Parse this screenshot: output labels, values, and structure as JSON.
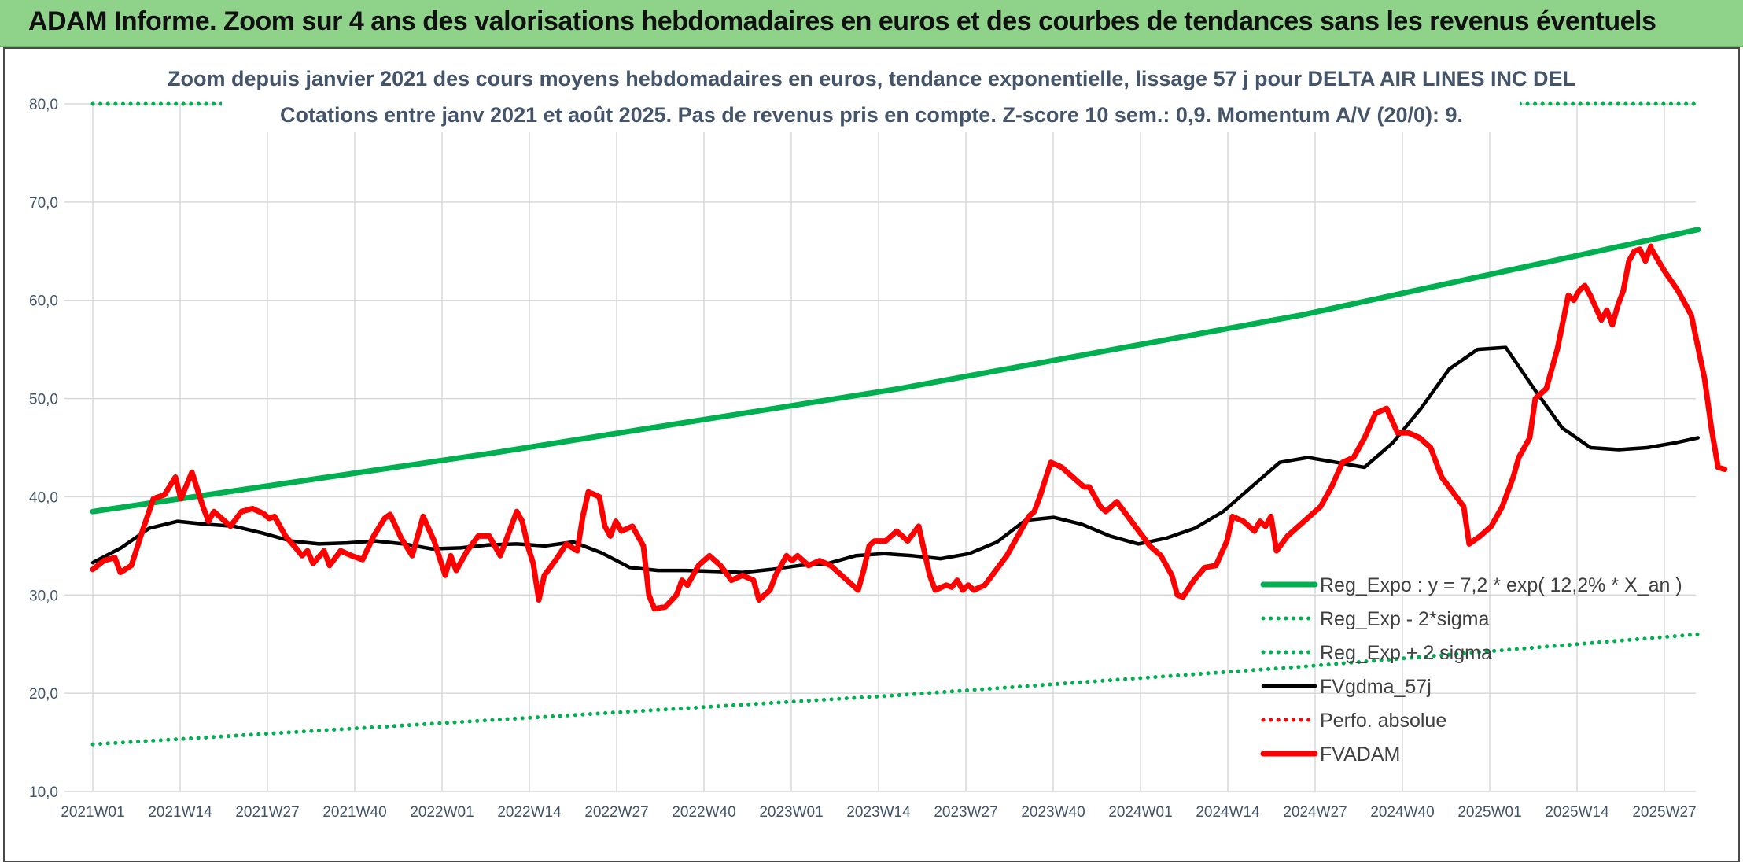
{
  "banner": {
    "text": "ADAM Informe. Zoom sur 4 ans des valorisations hebdomadaires en euros et des courbes de tendances sans les revenus éventuels"
  },
  "colors": {
    "banner_bg": "#8fd38a",
    "trend_green": "#00b050",
    "price_red": "#ff0000",
    "smooth_black": "#000000",
    "text_blue_gray": "#44546a"
  },
  "chart_data": {
    "type": "line",
    "title": "Zoom depuis janvier 2021 des cours moyens hebdomadaires en euros, tendance exponentielle, lissage 57 j pour DELTA AIR LINES INC DEL",
    "subtitle": "Cotations entre janv 2021 et août 2025. Pas de revenus pris en compte. Z-score 10 sem.: 0,9. Momentum A/V (20/0): 9.",
    "xlabel": "",
    "ylabel": "",
    "ylim": [
      10,
      80
    ],
    "yticks": [
      "10,0",
      "20,0",
      "30,0",
      "40,0",
      "50,0",
      "60,0",
      "70,0",
      "80,0"
    ],
    "xticks": [
      "2021W01",
      "2021W14",
      "2021W27",
      "2021W40",
      "2022W01",
      "2022W14",
      "2022W27",
      "2022W40",
      "2023W01",
      "2023W14",
      "2023W27",
      "2023W40",
      "2024W01",
      "2024W14",
      "2024W27",
      "2024W40",
      "2025W01",
      "2025W14",
      "2025W27"
    ],
    "xrange_weeks": [
      0,
      239
    ],
    "grid": true,
    "legend_position": "bottom-right",
    "series": [
      {
        "name": "Reg_Expo : y = 7,2 * exp( 12,2% *  X_an )",
        "style": "solid-thick",
        "color": "#00b050",
        "points": [
          [
            0,
            38.5
          ],
          [
            60,
            44.5
          ],
          [
            120,
            51.0
          ],
          [
            180,
            58.5
          ],
          [
            239,
            67.2
          ]
        ]
      },
      {
        "name": "Reg_Exp - 2*sigma",
        "style": "dotted",
        "color": "#00b050",
        "points": [
          [
            0,
            14.8
          ],
          [
            60,
            17.3
          ],
          [
            120,
            19.8
          ],
          [
            180,
            22.7
          ],
          [
            239,
            26.0
          ]
        ]
      },
      {
        "name": "Reg_Exp + 2 sigma",
        "style": "dotted",
        "color": "#00b050",
        "points": [
          [
            0,
            80.0
          ],
          [
            239,
            80.0
          ]
        ]
      },
      {
        "name": "FVgdma_57j",
        "style": "solid",
        "color": "#000000",
        "points": [
          [
            0,
            33.3
          ],
          [
            5,
            34.8
          ],
          [
            10,
            36.8
          ],
          [
            15,
            37.5
          ],
          [
            20,
            37.2
          ],
          [
            25,
            37.0
          ],
          [
            30,
            36.3
          ],
          [
            35,
            35.5
          ],
          [
            40,
            35.2
          ],
          [
            45,
            35.3
          ],
          [
            50,
            35.5
          ],
          [
            55,
            35.2
          ],
          [
            60,
            34.7
          ],
          [
            65,
            34.8
          ],
          [
            70,
            35.1
          ],
          [
            75,
            35.2
          ],
          [
            80,
            35.0
          ],
          [
            85,
            35.4
          ],
          [
            90,
            34.3
          ],
          [
            95,
            32.8
          ],
          [
            100,
            32.5
          ],
          [
            105,
            32.5
          ],
          [
            110,
            32.4
          ],
          [
            115,
            32.3
          ],
          [
            120,
            32.6
          ],
          [
            125,
            33.0
          ],
          [
            130,
            33.2
          ],
          [
            135,
            34.0
          ],
          [
            140,
            34.2
          ],
          [
            145,
            34.0
          ],
          [
            150,
            33.7
          ],
          [
            155,
            34.2
          ],
          [
            160,
            35.4
          ],
          [
            165,
            37.6
          ],
          [
            170,
            37.9
          ],
          [
            175,
            37.2
          ],
          [
            180,
            36.0
          ],
          [
            185,
            35.2
          ],
          [
            190,
            35.8
          ],
          [
            195,
            36.8
          ],
          [
            200,
            38.5
          ],
          [
            205,
            41.0
          ],
          [
            210,
            43.5
          ],
          [
            215,
            44.0
          ],
          [
            220,
            43.5
          ],
          [
            225,
            43.0
          ],
          [
            230,
            45.5
          ],
          [
            235,
            49.0
          ],
          [
            240,
            53.0
          ],
          [
            245,
            55.0
          ],
          [
            250,
            55.2
          ],
          [
            255,
            51.0
          ],
          [
            260,
            47.0
          ],
          [
            265,
            45.0
          ],
          [
            270,
            44.8
          ],
          [
            275,
            45.0
          ],
          [
            280,
            45.5
          ],
          [
            284,
            46.0
          ]
        ]
      },
      {
        "name": "Perfo. absolue",
        "style": "dotted",
        "color": "#ff0000",
        "points": []
      },
      {
        "name": "FVADAM",
        "style": "solid-thick",
        "color": "#ff0000",
        "points": [
          [
            0,
            32.6
          ],
          [
            2,
            33.5
          ],
          [
            4,
            33.8
          ],
          [
            5,
            32.3
          ],
          [
            7,
            33.0
          ],
          [
            9,
            36.5
          ],
          [
            11,
            39.8
          ],
          [
            13,
            40.2
          ],
          [
            15,
            42.0
          ],
          [
            16,
            39.8
          ],
          [
            18,
            42.5
          ],
          [
            20,
            39.0
          ],
          [
            21,
            37.5
          ],
          [
            22,
            38.5
          ],
          [
            23,
            38.0
          ],
          [
            25,
            37.0
          ],
          [
            27,
            38.5
          ],
          [
            29,
            38.8
          ],
          [
            31,
            38.3
          ],
          [
            32,
            37.8
          ],
          [
            33,
            38.0
          ],
          [
            35,
            36.0
          ],
          [
            37,
            34.7
          ],
          [
            38,
            34.0
          ],
          [
            39,
            34.5
          ],
          [
            40,
            33.2
          ],
          [
            42,
            34.5
          ],
          [
            43,
            33.0
          ],
          [
            45,
            34.5
          ],
          [
            47,
            34.0
          ],
          [
            49,
            33.6
          ],
          [
            51,
            36.0
          ],
          [
            53,
            37.8
          ],
          [
            54,
            38.2
          ],
          [
            56,
            35.8
          ],
          [
            58,
            34.0
          ],
          [
            60,
            38.0
          ],
          [
            62,
            35.5
          ],
          [
            64,
            32.0
          ],
          [
            65,
            34.0
          ],
          [
            66,
            32.5
          ],
          [
            68,
            34.5
          ],
          [
            70,
            36.0
          ],
          [
            72,
            36.0
          ],
          [
            74,
            34.0
          ],
          [
            76,
            37.0
          ],
          [
            77,
            38.5
          ],
          [
            78,
            37.5
          ],
          [
            79,
            35.0
          ],
          [
            80,
            33.2
          ],
          [
            81,
            29.5
          ],
          [
            82,
            32.0
          ],
          [
            84,
            33.5
          ],
          [
            86,
            35.2
          ],
          [
            88,
            34.5
          ],
          [
            89,
            38.0
          ],
          [
            90,
            40.5
          ],
          [
            92,
            40.0
          ],
          [
            93,
            37.0
          ],
          [
            94,
            36.0
          ],
          [
            95,
            37.5
          ],
          [
            96,
            36.5
          ],
          [
            98,
            37.0
          ],
          [
            100,
            35.0
          ],
          [
            101,
            30.0
          ],
          [
            102,
            28.6
          ],
          [
            104,
            28.8
          ],
          [
            106,
            30.0
          ],
          [
            107,
            31.5
          ],
          [
            108,
            31.0
          ],
          [
            110,
            33.0
          ],
          [
            112,
            34.0
          ],
          [
            114,
            33.0
          ],
          [
            116,
            31.5
          ],
          [
            118,
            32.0
          ],
          [
            120,
            31.5
          ],
          [
            121,
            29.5
          ],
          [
            123,
            30.5
          ],
          [
            124,
            32.0
          ],
          [
            126,
            34.0
          ],
          [
            127,
            33.5
          ],
          [
            128,
            34.0
          ],
          [
            130,
            33.0
          ],
          [
            132,
            33.5
          ],
          [
            134,
            33.0
          ],
          [
            136,
            32.0
          ],
          [
            138,
            31.0
          ],
          [
            139,
            30.5
          ],
          [
            140,
            32.5
          ],
          [
            141,
            35.0
          ],
          [
            142,
            35.5
          ],
          [
            144,
            35.5
          ],
          [
            145,
            36.0
          ],
          [
            146,
            36.5
          ],
          [
            148,
            35.5
          ],
          [
            150,
            37.0
          ],
          [
            152,
            32.0
          ],
          [
            153,
            30.5
          ],
          [
            155,
            31.0
          ],
          [
            156,
            30.8
          ],
          [
            157,
            31.5
          ],
          [
            158,
            30.5
          ],
          [
            159,
            31.0
          ],
          [
            160,
            30.5
          ],
          [
            162,
            31.0
          ],
          [
            164,
            32.5
          ],
          [
            166,
            34.0
          ],
          [
            168,
            36.0
          ],
          [
            170,
            38.0
          ],
          [
            171,
            38.5
          ],
          [
            172,
            40.0
          ],
          [
            174,
            43.5
          ],
          [
            176,
            43.0
          ],
          [
            178,
            42.0
          ],
          [
            180,
            41.0
          ],
          [
            181,
            41.0
          ],
          [
            183,
            39.0
          ],
          [
            184,
            38.5
          ],
          [
            186,
            39.5
          ],
          [
            188,
            38.0
          ],
          [
            190,
            36.5
          ],
          [
            192,
            35.0
          ],
          [
            194,
            34.0
          ],
          [
            196,
            32.0
          ],
          [
            197,
            30.0
          ],
          [
            198,
            29.8
          ],
          [
            200,
            31.5
          ],
          [
            202,
            32.8
          ],
          [
            204,
            33.0
          ],
          [
            206,
            35.5
          ],
          [
            207,
            38.0
          ],
          [
            209,
            37.5
          ],
          [
            211,
            36.5
          ],
          [
            212,
            37.5
          ],
          [
            213,
            37.0
          ],
          [
            214,
            38.0
          ],
          [
            215,
            34.5
          ],
          [
            217,
            36.0
          ],
          [
            219,
            37.0
          ],
          [
            221,
            38.0
          ],
          [
            223,
            39.0
          ],
          [
            225,
            41.0
          ],
          [
            227,
            43.5
          ],
          [
            229,
            44.0
          ],
          [
            231,
            46.0
          ],
          [
            233,
            48.5
          ],
          [
            235,
            49.0
          ],
          [
            237,
            46.5
          ],
          [
            239,
            46.5
          ],
          [
            241,
            46.0
          ],
          [
            243,
            45.0
          ],
          [
            245,
            42.0
          ],
          [
            247,
            40.5
          ],
          [
            249,
            39.0
          ],
          [
            250,
            35.2
          ],
          [
            252,
            36.0
          ],
          [
            254,
            37.0
          ],
          [
            256,
            39.0
          ],
          [
            258,
            42.0
          ],
          [
            259,
            44.0
          ],
          [
            261,
            46.0
          ],
          [
            262,
            50.0
          ],
          [
            264,
            51.0
          ],
          [
            266,
            55.0
          ],
          [
            268,
            60.5
          ],
          [
            269,
            60.0
          ],
          [
            270,
            61.0
          ],
          [
            271,
            61.5
          ],
          [
            272,
            60.5
          ],
          [
            274,
            58.0
          ],
          [
            275,
            59.0
          ],
          [
            276,
            57.5
          ],
          [
            277,
            59.5
          ],
          [
            278,
            61.0
          ],
          [
            279,
            64.0
          ],
          [
            280,
            65.0
          ],
          [
            281,
            65.2
          ],
          [
            282,
            64.0
          ],
          [
            283,
            65.5
          ]
        ]
      }
    ],
    "fvadam_tail": [
      [
        228,
        65.3
      ],
      [
        230,
        63.0
      ],
      [
        232,
        61.0
      ],
      [
        234,
        58.5
      ],
      [
        236,
        52.0
      ],
      [
        237,
        47.0
      ],
      [
        238,
        43.0
      ],
      [
        239,
        42.8
      ]
    ]
  }
}
